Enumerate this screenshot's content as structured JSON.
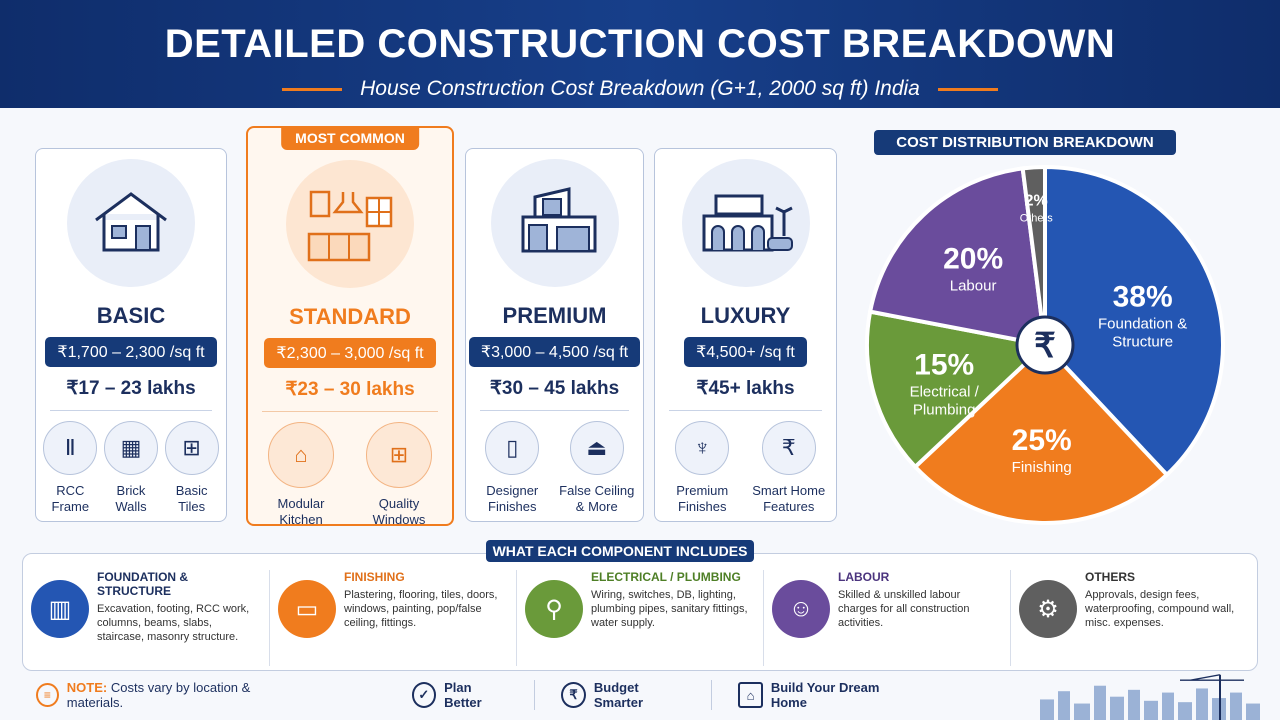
{
  "header": {
    "title": "DETAILED CONSTRUCTION COST BREAKDOWN",
    "subtitle": "House Construction Cost Breakdown (G+1, 2000 sq ft) India"
  },
  "tiers": [
    {
      "name": "BASIC",
      "rate": "₹1,700 – 2,300 /sq ft",
      "total": "₹17 – 23 lakhs",
      "features": [
        "RCC Frame",
        "Brick Walls",
        "Basic Tiles"
      ]
    },
    {
      "badge": "MOST COMMON",
      "name": "STANDARD",
      "rate": "₹2,300 – 3,000 /sq ft",
      "total": "₹23 – 30 lakhs",
      "features": [
        "Modular Kitchen",
        "Quality Windows"
      ]
    },
    {
      "name": "PREMIUM",
      "rate": "₹3,000 – 4,500 /sq ft",
      "total": "₹30 – 45 lakhs",
      "features": [
        "Designer Finishes",
        "False Ceiling & More"
      ]
    },
    {
      "name": "LUXURY",
      "rate": "₹4,500+ /sq ft",
      "total": "₹45+ lakhs",
      "features": [
        "Premium Finishes",
        "Smart Home Features"
      ]
    }
  ],
  "chart_data": {
    "type": "pie",
    "title": "COST DISTRIBUTION BREAKDOWN",
    "slices": [
      {
        "label": "Foundation & Structure",
        "value": 38,
        "text": "38%",
        "color": "#2456b3"
      },
      {
        "label": "Finishing",
        "value": 25,
        "text": "25%",
        "color": "#f07c1e"
      },
      {
        "label": "Electrical / Plumbing",
        "value": 15,
        "text": "15%",
        "color": "#6a9a3a"
      },
      {
        "label": "Labour",
        "value": 20,
        "text": "20%",
        "color": "#6a4c9c"
      },
      {
        "label": "Others",
        "value": 2,
        "text": "2%",
        "color": "#5f5f5f"
      }
    ],
    "center_icon": "rupee-icon"
  },
  "components": {
    "title": "WHAT EACH COMPONENT INCLUDES",
    "items": [
      {
        "title": "FOUNDATION & STRUCTURE",
        "desc": "Excavation, footing, RCC work, columns, beams, slabs, staircase, masonry structure.",
        "color": "#2456b3",
        "title_color": "#1c2f5e",
        "icon": "column-icon"
      },
      {
        "title": "FINISHING",
        "desc": "Plastering, flooring, tiles, doors, windows, painting, pop/false ceiling, fittings.",
        "color": "#f07c1e",
        "title_color": "#e0701a",
        "icon": "paint-roller-icon"
      },
      {
        "title": "ELECTRICAL / PLUMBING",
        "desc": "Wiring, switches, DB, lighting, plumbing pipes, sanitary fittings, water supply.",
        "color": "#6a9a3a",
        "title_color": "#4e7f26",
        "icon": "faucet-icon"
      },
      {
        "title": "LABOUR",
        "desc": "Skilled & unskilled labour charges for all construction activities.",
        "color": "#6a4c9c",
        "title_color": "#4b347e",
        "icon": "worker-icon"
      },
      {
        "title": "OTHERS",
        "desc": "Approvals, design fees, waterproofing, compound wall, misc. expenses.",
        "color": "#5f5f5f",
        "title_color": "#333333",
        "icon": "clipboard-gear-icon"
      }
    ]
  },
  "footer": {
    "note_label": "NOTE:",
    "note": "Costs vary by location & materials.",
    "items": [
      "Plan Better",
      "Budget Smarter",
      "Build Your Dream Home"
    ]
  }
}
